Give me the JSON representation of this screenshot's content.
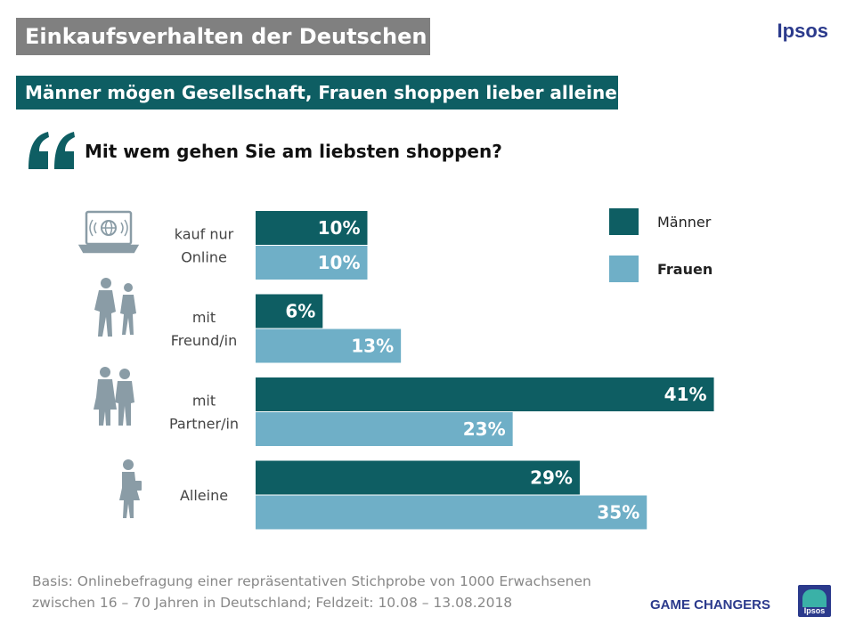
{
  "header": {
    "title": "Einkaufsverhalten der Deutschen",
    "brand": "Ipsos",
    "subtitle": "Männer mögen Gesellschaft, Frauen shoppen lieber alleine",
    "question": "Mit wem gehen Sie am liebsten shoppen?"
  },
  "chart_data": {
    "type": "bar",
    "orientation": "horizontal",
    "categories": [
      [
        "kauf nur",
        "Online"
      ],
      [
        "mit",
        "Freund/in"
      ],
      [
        "mit",
        "Partner/in"
      ],
      [
        "Alleine"
      ]
    ],
    "series": [
      {
        "name": "Männer",
        "values": [
          10,
          6,
          41,
          29
        ],
        "labels": [
          "10%",
          "6%",
          "41%",
          "29%"
        ],
        "color": "#0e5e63"
      },
      {
        "name": "Frauen",
        "values": [
          10,
          13,
          23,
          35
        ],
        "labels": [
          "10%",
          "13%",
          "23%",
          "35%"
        ],
        "color": "#6fafc7"
      }
    ],
    "unit": "%",
    "xlim": [
      0,
      41
    ],
    "legend": "top-right",
    "grid": false,
    "icons": [
      "laptop-globe-icon",
      "friends-icon",
      "couple-icon",
      "woman-shopping-icon"
    ]
  },
  "footer": {
    "basis_line1": "Basis: Onlinebefragung einer repräsentativen Stichprobe von 1000 Erwachsenen",
    "basis_line2": "zwischen 16 – 70 Jahren in Deutschland; Feldzeit: 10.08 – 13.08.2018",
    "tagline": "GAME CHANGERS",
    "logo_text": "Ipsos"
  },
  "colors": {
    "accent": "#0e5e63",
    "light": "#6fafc7",
    "gray": "#808080",
    "brand": "#2b3a8c",
    "icon": "#8a9ca6"
  }
}
